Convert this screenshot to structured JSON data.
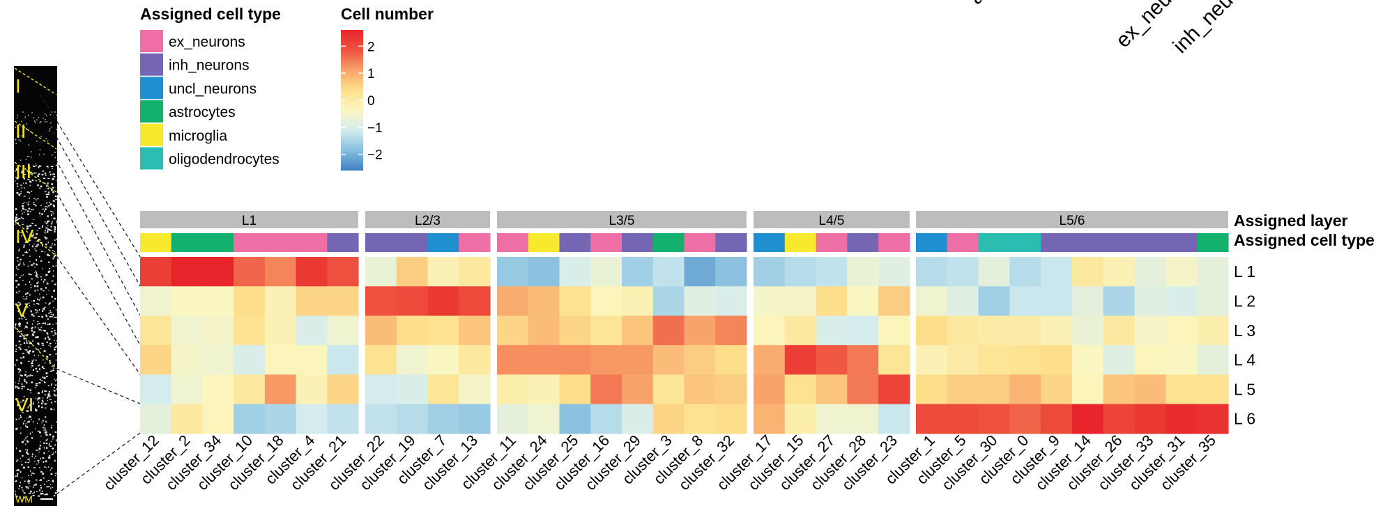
{
  "chart_data": {
    "type": "heatmap",
    "rows": [
      "L 1",
      "L 2",
      "L 3",
      "L 4",
      "L 5",
      "L 6"
    ],
    "columns": [
      "cluster_12",
      "cluster_2",
      "cluster_34",
      "cluster_10",
      "cluster_18",
      "cluster_4",
      "cluster_21",
      "cluster_22",
      "cluster_19",
      "cluster_7",
      "cluster_13",
      "cluster_11",
      "cluster_24",
      "cluster_25",
      "cluster_16",
      "cluster_29",
      "cluster_3",
      "cluster_8",
      "cluster_32",
      "cluster_17",
      "cluster_15",
      "cluster_27",
      "cluster_28",
      "cluster_23",
      "cluster_1",
      "cluster_5",
      "cluster_30",
      "cluster_0",
      "cluster_9",
      "cluster_14",
      "cluster_26",
      "cluster_33",
      "cluster_31",
      "cluster_35"
    ],
    "values": [
      [
        2.2,
        2.6,
        2.6,
        1.7,
        1.4,
        2.3,
        1.9,
        -0.7,
        0.6,
        -0.2,
        0.1,
        -1.7,
        -1.8,
        -1.0,
        -0.7,
        -1.6,
        -1.3,
        -2.1,
        -1.8,
        -1.6,
        -1.4,
        -1.3,
        -0.7,
        -0.9,
        -1.4,
        -1.3,
        -0.8,
        -1.4,
        -1.2,
        0.1,
        -0.2,
        -0.8,
        -0.5,
        -0.8
      ],
      [
        -0.6,
        -0.4,
        -0.4,
        0.4,
        -0.2,
        0.5,
        0.5,
        1.9,
        2.0,
        2.3,
        2.0,
        1.0,
        0.8,
        0.3,
        -0.3,
        -0.2,
        -1.5,
        -0.9,
        -1.0,
        -0.5,
        -0.5,
        0.4,
        -0.4,
        0.6,
        -0.6,
        -0.9,
        -1.6,
        -1.2,
        -1.2,
        -0.8,
        -1.5,
        -0.9,
        -1.0,
        -0.8
      ],
      [
        0.2,
        -0.6,
        -0.5,
        0.3,
        -0.2,
        -1.0,
        -0.6,
        0.8,
        0.4,
        0.3,
        0.7,
        0.5,
        0.8,
        0.5,
        0.2,
        0.7,
        1.6,
        1.1,
        1.4,
        -0.3,
        0.1,
        -1.0,
        -1.1,
        -0.3,
        0.4,
        0.1,
        0.0,
        0.0,
        -0.2,
        -0.7,
        0.1,
        -0.5,
        -0.3,
        -0.1
      ],
      [
        0.5,
        -0.5,
        -0.6,
        -1.0,
        -0.3,
        -0.3,
        -1.2,
        0.3,
        -0.6,
        -0.4,
        0.1,
        1.3,
        1.3,
        1.3,
        1.2,
        1.2,
        0.8,
        0.6,
        0.4,
        1.0,
        2.2,
        1.8,
        1.5,
        0.2,
        -0.2,
        0.0,
        0.2,
        0.3,
        0.4,
        -0.4,
        -0.9,
        -0.3,
        -0.4,
        -0.8
      ],
      [
        -1.1,
        -0.6,
        -0.3,
        0.1,
        1.2,
        -0.2,
        0.5,
        -1.1,
        -1.0,
        0.2,
        -0.5,
        -0.1,
        -0.2,
        0.4,
        1.5,
        1.1,
        0.2,
        0.7,
        0.6,
        1.1,
        0.3,
        0.7,
        1.5,
        2.1,
        0.4,
        0.6,
        0.6,
        0.9,
        0.5,
        -0.3,
        0.7,
        0.8,
        0.3,
        0.3
      ],
      [
        -0.8,
        0.1,
        -0.3,
        -1.6,
        -1.5,
        -1.1,
        -1.3,
        -1.3,
        -1.4,
        -1.6,
        -1.7,
        -0.8,
        -0.6,
        -1.8,
        -1.4,
        -1.0,
        0.5,
        0.3,
        0.4,
        0.9,
        -0.1,
        -0.6,
        -0.6,
        -1.2,
        2.0,
        2.0,
        1.9,
        1.7,
        2.0,
        2.6,
        2.1,
        2.3,
        2.5,
        2.4
      ]
    ],
    "col_groups": [
      {
        "name": "L1",
        "count": 7
      },
      {
        "name": "L2/3",
        "count": 4
      },
      {
        "name": "L3/5",
        "count": 8
      },
      {
        "name": "L4/5",
        "count": 5
      },
      {
        "name": "L5/6",
        "count": 10
      }
    ],
    "col_cell_types": [
      "microglia",
      "astrocytes",
      "astrocytes",
      "ex_neurons",
      "ex_neurons",
      "ex_neurons",
      "inh_neurons",
      "inh_neurons",
      "inh_neurons",
      "uncl_neurons",
      "ex_neurons",
      "ex_neurons",
      "microglia",
      "inh_neurons",
      "ex_neurons",
      "inh_neurons",
      "astrocytes",
      "ex_neurons",
      "inh_neurons",
      "uncl_neurons",
      "microglia",
      "ex_neurons",
      "inh_neurons",
      "ex_neurons",
      "uncl_neurons",
      "ex_neurons",
      "oligodendrocytes",
      "oligodendrocytes",
      "inh_neurons",
      "inh_neurons",
      "inh_neurons",
      "inh_neurons",
      "inh_neurons",
      "astrocytes"
    ],
    "annotation_labels": [
      "Assigned layer",
      "Assigned cell type"
    ],
    "legend_cell_type": {
      "title": "Assigned cell type",
      "items": [
        {
          "label": "ex_neurons",
          "color": "#ee6ea6"
        },
        {
          "label": "inh_neurons",
          "color": "#7466b2"
        },
        {
          "label": "uncl_neurons",
          "color": "#1f8fd0"
        },
        {
          "label": "astrocytes",
          "color": "#12b26e"
        },
        {
          "label": "microglia",
          "color": "#f7ea2e"
        },
        {
          "label": "oligodendrocytes",
          "color": "#2bbcb2"
        }
      ]
    },
    "legend_scale": {
      "title": "Cell number",
      "ticks": [
        2,
        1,
        0,
        -1,
        -2
      ],
      "tick_labels": [
        "2",
        "1",
        "0",
        "−1",
        "−2"
      ],
      "range": [
        -2.6,
        2.6
      ],
      "colors": [
        "#3e7fc0",
        "#86bfdf",
        "#d4ecf0",
        "#fbf6c0",
        "#fde08c",
        "#f8a26a",
        "#ee5340",
        "#e8252b"
      ]
    },
    "top_rotated_labels": [
      "a",
      "ex_neu",
      "inh_neu"
    ]
  },
  "tissue": {
    "layers": [
      "I",
      "II",
      "III",
      "IV",
      "V",
      "VI"
    ],
    "wm_label": "WM"
  }
}
